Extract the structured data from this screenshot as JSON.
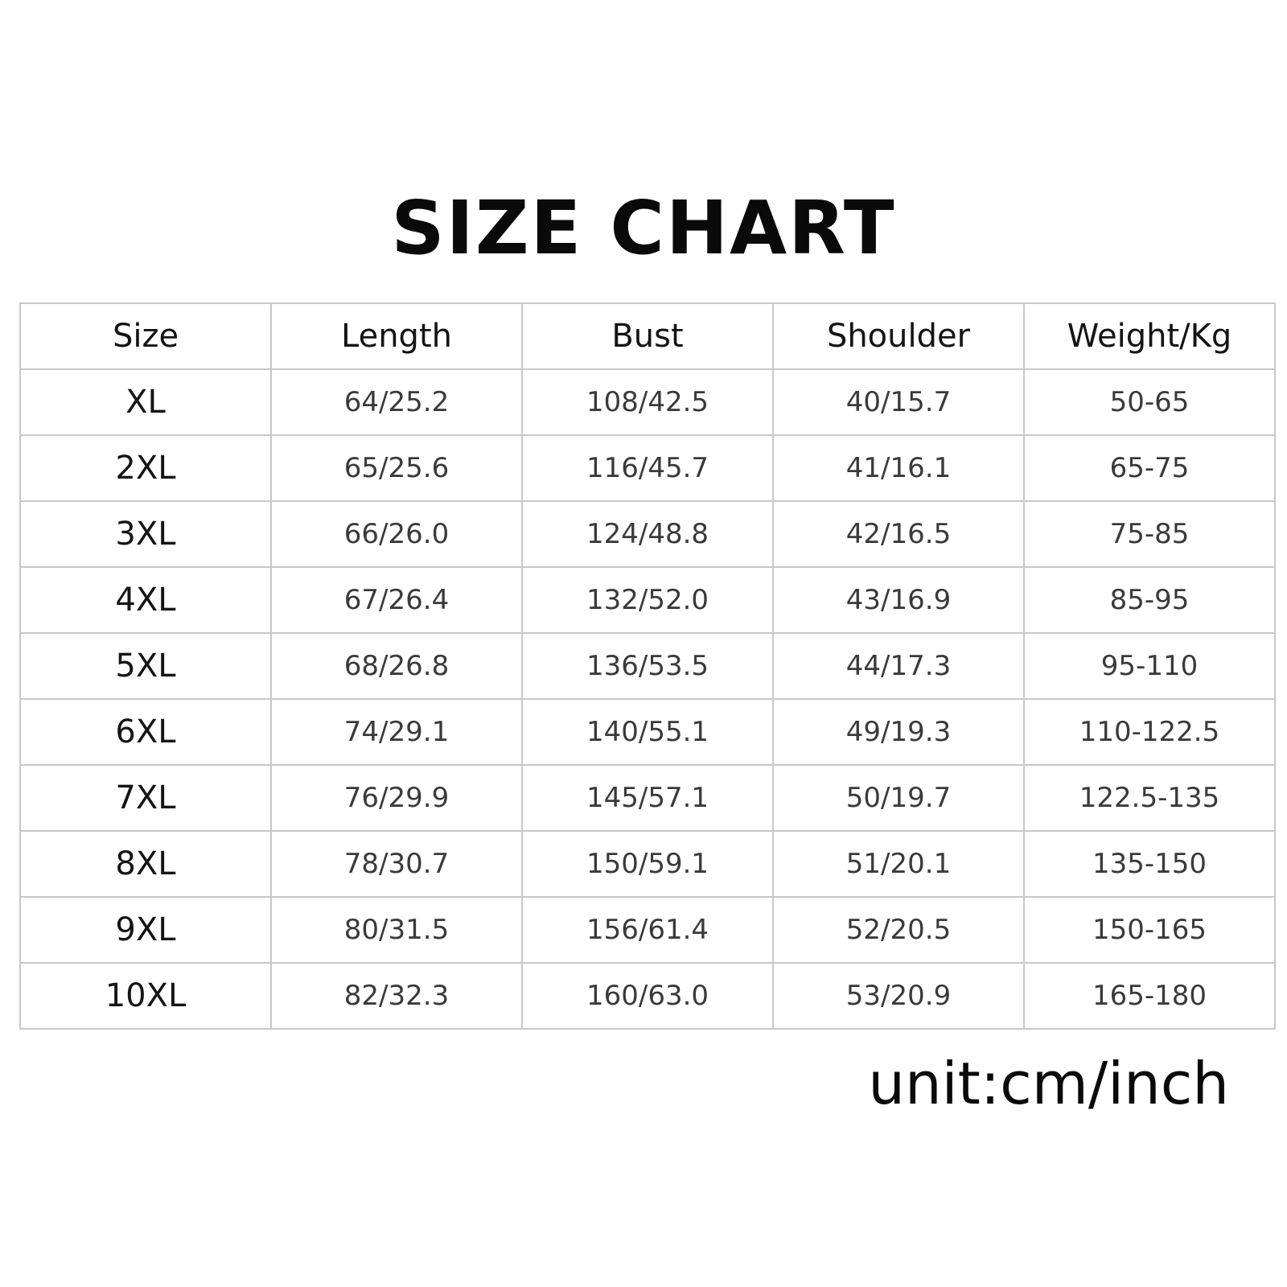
{
  "title": "SIZE CHART",
  "table": {
    "headers": [
      "Size",
      "Length",
      "Bust",
      "Shoulder",
      "Weight/Kg"
    ],
    "rows": [
      [
        "XL",
        "64/25.2",
        "108/42.5",
        "40/15.7",
        "50-65"
      ],
      [
        "2XL",
        "65/25.6",
        "116/45.7",
        "41/16.1",
        "65-75"
      ],
      [
        "3XL",
        "66/26.0",
        "124/48.8",
        "42/16.5",
        "75-85"
      ],
      [
        "4XL",
        "67/26.4",
        "132/52.0",
        "43/16.9",
        "85-95"
      ],
      [
        "5XL",
        "68/26.8",
        "136/53.5",
        "44/17.3",
        "95-110"
      ],
      [
        "6XL",
        "74/29.1",
        "140/55.1",
        "49/19.3",
        "110-122.5"
      ],
      [
        "7XL",
        "76/29.9",
        "145/57.1",
        "50/19.7",
        "122.5-135"
      ],
      [
        "8XL",
        "78/30.7",
        "150/59.1",
        "51/20.1",
        "135-150"
      ],
      [
        "9XL",
        "80/31.5",
        "156/61.4",
        "52/20.5",
        "150-165"
      ],
      [
        "10XL",
        "82/32.3",
        "160/63.0",
        "53/20.9",
        "165-180"
      ]
    ]
  },
  "unit_note": "unit:cm/inch",
  "colors": {
    "text": "#111111",
    "cell_text": "#3a3a3a",
    "grid_line": "#c8c8c8",
    "background": "#ffffff"
  }
}
